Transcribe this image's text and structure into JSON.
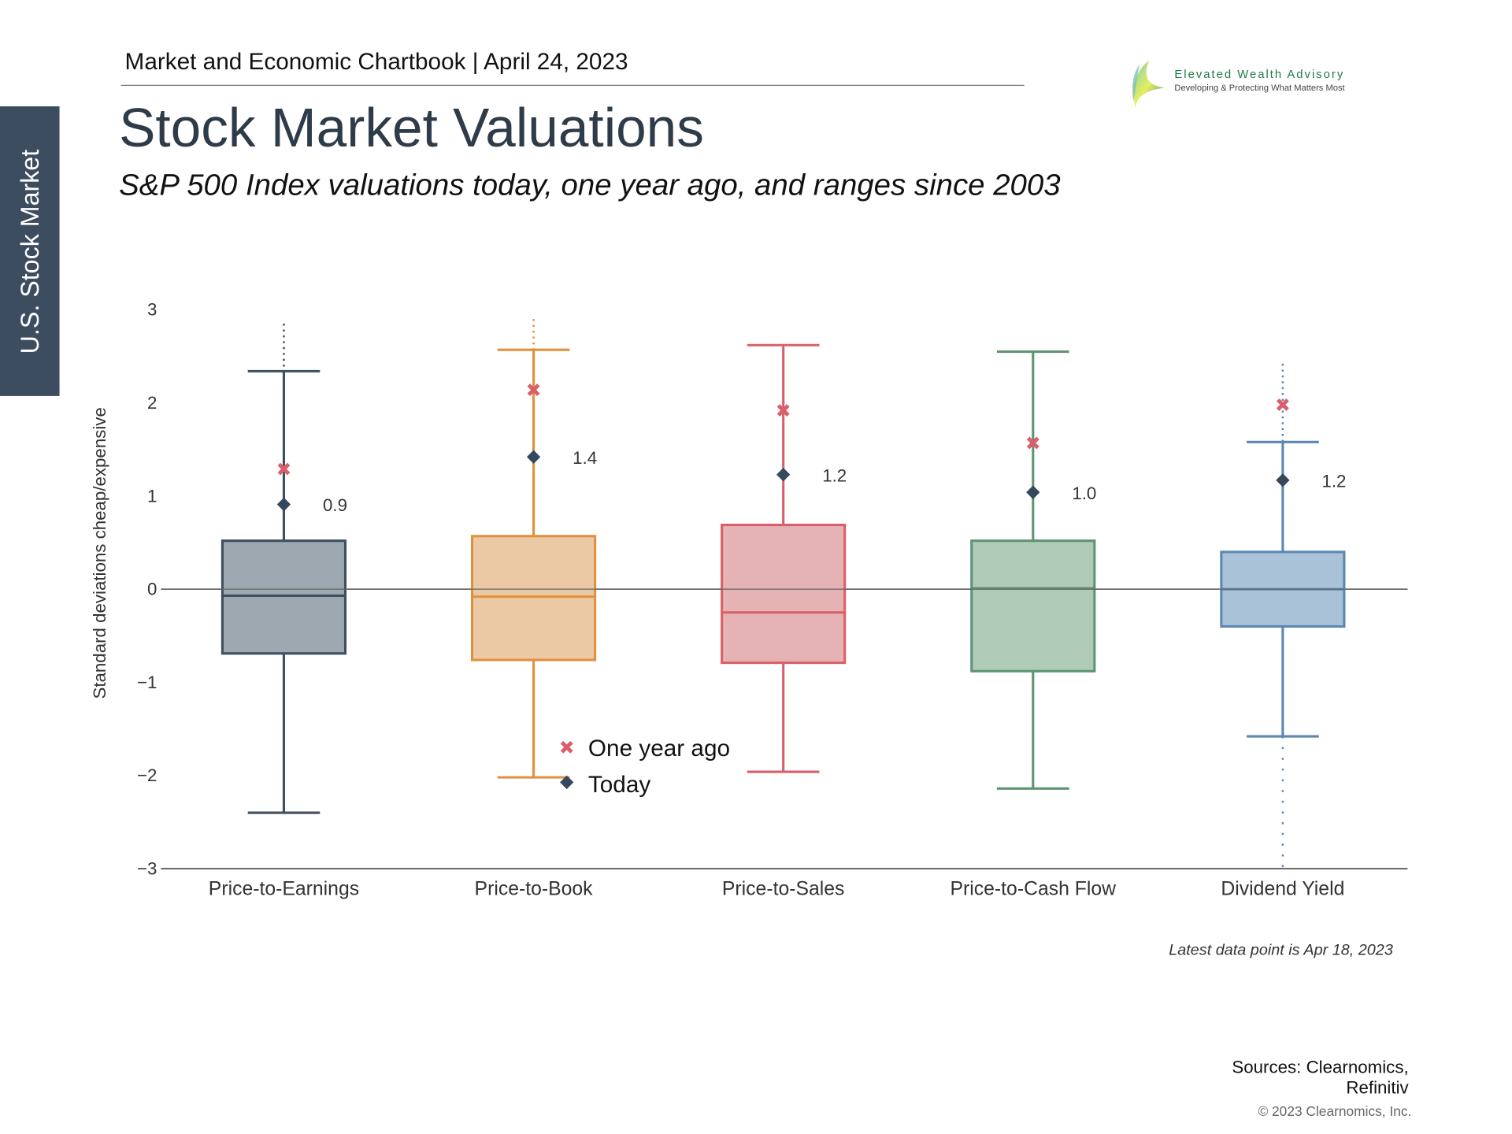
{
  "header": {
    "chartbook": "Market and Economic Chartbook | April 24, 2023",
    "title": "Stock Market Valuations",
    "subtitle": "S&P 500 Index valuations today, one year ago, and ranges since 2003",
    "side_tab": "U.S. Stock Market"
  },
  "logo": {
    "name": "Elevated Wealth Advisory",
    "tagline": "Developing & Protecting What Matters Most"
  },
  "chart_data": {
    "type": "box",
    "ylabel": "Standard deviations cheap/expensive",
    "ylim": [
      -3,
      3
    ],
    "yticks": [
      3,
      2,
      1,
      0,
      -1,
      -2,
      -3
    ],
    "ytick_labels": [
      "3",
      "2",
      "1",
      "0",
      "−1",
      "−2",
      "−3"
    ],
    "legend": {
      "position": "bottom-center",
      "one_year_ago": "One year ago",
      "today": "Today"
    },
    "series": [
      {
        "name": "Price-to-Earnings",
        "whisker_high": 2.34,
        "q3": 0.52,
        "median": -0.07,
        "q1": -0.69,
        "whisker_low": -2.4,
        "outliers_high": 2.85,
        "outliers_low": null,
        "one_year_ago": 1.29,
        "today": 0.91,
        "today_label": "0.9",
        "color": "#3d4f60",
        "fill": "#9ea8b0"
      },
      {
        "name": "Price-to-Book",
        "whisker_high": 2.57,
        "q3": 0.57,
        "median": -0.08,
        "q1": -0.76,
        "whisker_low": -2.02,
        "outliers_high": 2.9,
        "outliers_low": null,
        "one_year_ago": 2.14,
        "today": 1.42,
        "today_label": "1.4",
        "color": "#e0913f",
        "fill": "#ebc9a4"
      },
      {
        "name": "Price-to-Sales",
        "whisker_high": 2.62,
        "q3": 0.69,
        "median": -0.25,
        "q1": -0.79,
        "whisker_low": -1.96,
        "outliers_high": null,
        "outliers_low": null,
        "one_year_ago": 1.92,
        "today": 1.23,
        "today_label": "1.2",
        "color": "#d9606a",
        "fill": "#e6b3b5"
      },
      {
        "name": "Price-to-Cash Flow",
        "whisker_high": 2.55,
        "q3": 0.52,
        "median": 0.01,
        "q1": -0.88,
        "whisker_low": -2.14,
        "outliers_high": null,
        "outliers_low": null,
        "one_year_ago": 1.57,
        "today": 1.04,
        "today_label": "1.0",
        "color": "#5e9470",
        "fill": "#b0cbb8"
      },
      {
        "name": "Dividend Yield",
        "whisker_high": 1.58,
        "q3": 0.4,
        "median": 0.0,
        "q1": -0.4,
        "whisker_low": -1.58,
        "outliers_high": 2.42,
        "outliers_low": -3.0,
        "one_year_ago": 1.98,
        "today": 1.17,
        "today_label": "1.2",
        "color": "#5b87b0",
        "fill": "#a9c2d8"
      }
    ],
    "marker_colors": {
      "one_year_ago": "#d9606a",
      "today": "#34495e"
    }
  },
  "footer": {
    "note": "Latest data point is Apr 18, 2023",
    "sources": [
      "Sources: Clearnomics,",
      "Refinitiv"
    ],
    "copyright": "© 2023 Clearnomics, Inc."
  }
}
